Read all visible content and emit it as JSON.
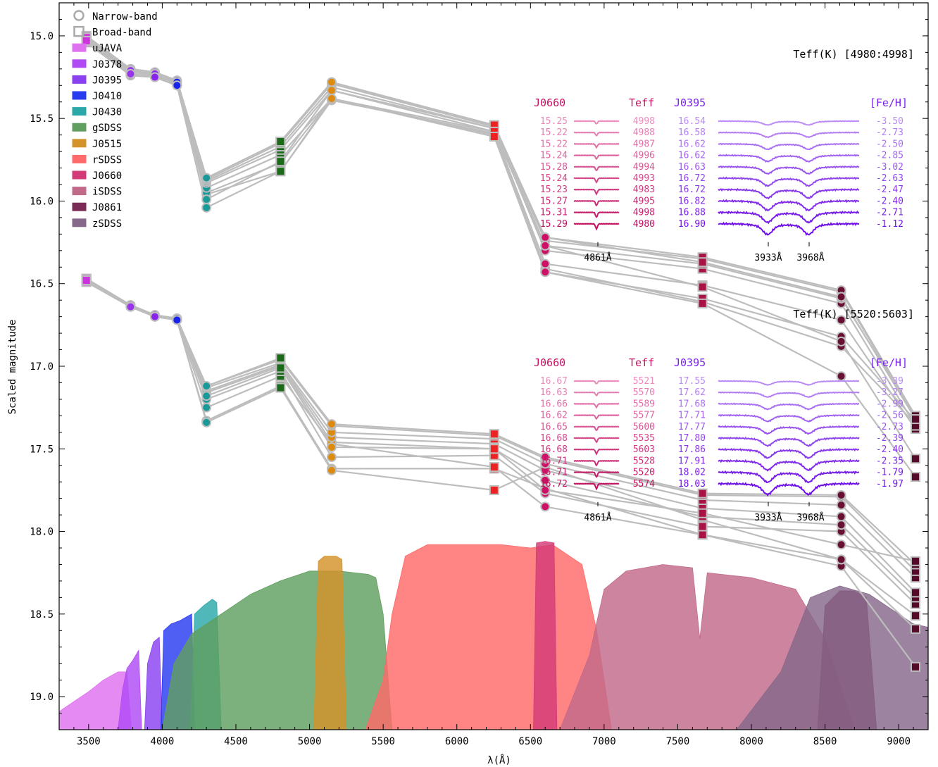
{
  "chart_data": {
    "type": "scatter",
    "xlabel": "λ(Å)",
    "ylabel": "Scaled magnitude",
    "xlim": [
      3300,
      9200
    ],
    "ylim": [
      19.2,
      14.8
    ],
    "y_inverted": true,
    "xticks": [
      3500,
      4000,
      4500,
      5000,
      5500,
      6000,
      6500,
      7000,
      7500,
      8000,
      8500,
      9000
    ],
    "yticks": [
      15.0,
      15.5,
      16.0,
      16.5,
      17.0,
      17.5,
      18.0,
      18.5,
      19.0
    ],
    "legend_position": "top-left",
    "legend": [
      {
        "label": "Narrow-band",
        "kind": "circle",
        "color": "#aaaaaa"
      },
      {
        "label": "Broad-band",
        "kind": "square",
        "color": "#aaaaaa"
      },
      {
        "label": "uJAVA",
        "kind": "patch",
        "color": "#df70f0"
      },
      {
        "label": "J0378",
        "kind": "patch",
        "color": "#b04af5"
      },
      {
        "label": "J0395",
        "kind": "patch",
        "color": "#8a42f0"
      },
      {
        "label": "J0410",
        "kind": "patch",
        "color": "#2a3cf0"
      },
      {
        "label": "J0430",
        "kind": "patch",
        "color": "#2aa8a8"
      },
      {
        "label": "gSDSS",
        "kind": "patch",
        "color": "#5f9f5f"
      },
      {
        "label": "J0515",
        "kind": "patch",
        "color": "#d4922a"
      },
      {
        "label": "rSDSS",
        "kind": "patch",
        "color": "#ff6a6a"
      },
      {
        "label": "J0660",
        "kind": "patch",
        "color": "#d43a78"
      },
      {
        "label": "iSDSS",
        "kind": "patch",
        "color": "#c26a8a"
      },
      {
        "label": "J0861",
        "kind": "patch",
        "color": "#7a2a54"
      },
      {
        "label": "zSDSS",
        "kind": "patch",
        "color": "#86688a"
      }
    ],
    "filters": [
      {
        "name": "uJAVA",
        "center": 3485,
        "kind": "broad",
        "color": "#cc33dd"
      },
      {
        "name": "J0378",
        "center": 3785,
        "kind": "narrow",
        "color": "#9a33ee"
      },
      {
        "name": "J0395",
        "center": 3950,
        "kind": "narrow",
        "color": "#8a22ee"
      },
      {
        "name": "J0410",
        "center": 4100,
        "kind": "narrow",
        "color": "#1a22ee"
      },
      {
        "name": "J0430",
        "center": 4300,
        "kind": "narrow",
        "color": "#1a9999"
      },
      {
        "name": "gSDSS",
        "center": 4803,
        "kind": "broad",
        "color": "#1a6a1a"
      },
      {
        "name": "J0515",
        "center": 5150,
        "kind": "narrow",
        "color": "#dd8a11"
      },
      {
        "name": "rSDSS",
        "center": 6254,
        "kind": "broad",
        "color": "#ee2222"
      },
      {
        "name": "J0660",
        "center": 6600,
        "kind": "narrow",
        "color": "#cc1166"
      },
      {
        "name": "iSDSS",
        "center": 7668,
        "kind": "broad",
        "color": "#aa1144"
      },
      {
        "name": "J0861",
        "center": 8610,
        "kind": "narrow",
        "color": "#661133"
      },
      {
        "name": "zSDSS",
        "center": 9114,
        "kind": "broad",
        "color": "#550a2a"
      }
    ],
    "groups": [
      {
        "label": "Teff(K) [4980:4998]",
        "stars": [
          [
            15.04,
            15.24,
            15.25,
            15.3,
            15.96,
            15.82,
            15.39,
            15.59,
            16.41,
            16.61,
            16.88,
            17.35
          ],
          [
            15.03,
            15.24,
            15.25,
            15.3,
            15.95,
            15.77,
            15.38,
            15.6,
            16.43,
            16.59,
            16.82,
            17.33
          ],
          [
            15.02,
            15.23,
            15.25,
            15.3,
            15.92,
            15.72,
            15.38,
            15.58,
            16.38,
            16.51,
            16.72,
            17.38
          ],
          [
            15.02,
            15.22,
            15.24,
            15.29,
            15.89,
            15.69,
            15.33,
            15.56,
            16.3,
            16.41,
            16.62,
            17.36
          ],
          [
            15.01,
            15.21,
            15.23,
            15.28,
            15.88,
            15.67,
            15.31,
            15.56,
            16.27,
            16.38,
            16.59,
            17.3
          ],
          [
            15.01,
            15.21,
            15.23,
            15.28,
            15.87,
            15.65,
            15.29,
            15.55,
            16.24,
            16.35,
            16.55,
            17.31
          ],
          [
            15.0,
            15.2,
            15.22,
            15.27,
            15.86,
            15.64,
            15.29,
            15.54,
            16.22,
            16.34,
            16.54,
            17.3
          ],
          [
            15.0,
            15.2,
            15.22,
            15.27,
            15.86,
            15.64,
            15.28,
            15.54,
            16.22,
            16.37,
            16.58,
            17.32
          ],
          [
            15.01,
            15.21,
            15.23,
            15.28,
            15.99,
            15.76,
            15.33,
            15.58,
            16.27,
            16.52,
            16.85,
            17.56
          ],
          [
            15.03,
            15.23,
            15.25,
            15.3,
            16.04,
            15.82,
            15.38,
            15.61,
            16.43,
            16.62,
            17.06,
            17.67
          ]
        ],
        "spectra_panel": {
          "left_header": "J0660",
          "mid_header": "Teff",
          "right_header_band": "J0395",
          "right_header": "[Fe/H]",
          "left_feature": "4861Å",
          "right_features": [
            "3933Å",
            "3968Å"
          ],
          "rows": [
            {
              "j0660": "15.25",
              "teff": "4998",
              "j0395": "16.54",
              "feh": "-3.50"
            },
            {
              "j0660": "15.22",
              "teff": "4988",
              "j0395": "16.58",
              "feh": "-2.73"
            },
            {
              "j0660": "15.22",
              "teff": "4987",
              "j0395": "16.62",
              "feh": "-2.50"
            },
            {
              "j0660": "15.24",
              "teff": "4996",
              "j0395": "16.62",
              "feh": "-2.85"
            },
            {
              "j0660": "15.28",
              "teff": "4994",
              "j0395": "16.63",
              "feh": "-3.02"
            },
            {
              "j0660": "15.24",
              "teff": "4993",
              "j0395": "16.72",
              "feh": "-2.63"
            },
            {
              "j0660": "15.23",
              "teff": "4983",
              "j0395": "16.72",
              "feh": "-2.47"
            },
            {
              "j0660": "15.27",
              "teff": "4995",
              "j0395": "16.82",
              "feh": "-2.40"
            },
            {
              "j0660": "15.31",
              "teff": "4998",
              "j0395": "16.88",
              "feh": "-2.71"
            },
            {
              "j0660": "15.29",
              "teff": "4980",
              "j0395": "16.90",
              "feh": "-1.12"
            }
          ]
        }
      },
      {
        "label": "Teff(K) [5520:5603]",
        "stars": [
          [
            16.49,
            16.64,
            16.69,
            16.72,
            17.33,
            17.12,
            17.62,
            17.62,
            17.74,
            18.02,
            18.21,
            18.82
          ],
          [
            16.48,
            16.64,
            16.7,
            16.72,
            17.34,
            17.13,
            17.63,
            17.75,
            17.61,
            17.93,
            18.17,
            18.59
          ],
          [
            16.49,
            16.64,
            16.7,
            16.72,
            17.25,
            17.06,
            17.47,
            17.61,
            17.85,
            18.02,
            18.17,
            18.51
          ],
          [
            16.48,
            16.64,
            16.7,
            16.72,
            17.2,
            17.03,
            17.55,
            17.54,
            17.77,
            17.97,
            18.0,
            18.44
          ],
          [
            16.47,
            16.63,
            16.69,
            16.71,
            17.16,
            17.0,
            17.46,
            17.5,
            17.69,
            17.91,
            17.96,
            18.4
          ],
          [
            16.47,
            16.63,
            16.69,
            16.71,
            17.15,
            16.99,
            17.43,
            17.47,
            17.63,
            17.86,
            17.91,
            18.37
          ],
          [
            16.48,
            16.63,
            16.69,
            16.72,
            17.13,
            16.98,
            17.4,
            17.44,
            17.59,
            17.81,
            17.84,
            18.28
          ],
          [
            16.48,
            16.64,
            16.7,
            16.72,
            17.12,
            16.96,
            17.36,
            17.42,
            17.56,
            17.78,
            17.79,
            18.24
          ],
          [
            16.47,
            16.63,
            16.69,
            16.71,
            17.12,
            16.95,
            17.35,
            17.41,
            17.55,
            17.77,
            17.78,
            18.2
          ],
          [
            16.48,
            16.64,
            16.7,
            16.72,
            17.18,
            17.01,
            17.49,
            17.5,
            17.75,
            17.89,
            18.08,
            18.18
          ]
        ],
        "spectra_panel": {
          "left_header": "J0660",
          "mid_header": "Teff",
          "right_header_band": "J0395",
          "right_header": "[Fe/H]",
          "left_feature": "4861Å",
          "right_features": [
            "3933Å",
            "3968Å"
          ],
          "rows": [
            {
              "j0660": "16.67",
              "teff": "5521",
              "j0395": "17.55",
              "feh": "-3.39"
            },
            {
              "j0660": "16.63",
              "teff": "5570",
              "j0395": "17.62",
              "feh": "-3.27"
            },
            {
              "j0660": "16.66",
              "teff": "5589",
              "j0395": "17.68",
              "feh": "-2.99"
            },
            {
              "j0660": "16.62",
              "teff": "5577",
              "j0395": "17.71",
              "feh": "-2.56"
            },
            {
              "j0660": "16.65",
              "teff": "5600",
              "j0395": "17.77",
              "feh": "-2.73"
            },
            {
              "j0660": "16.68",
              "teff": "5535",
              "j0395": "17.80",
              "feh": "-2.39"
            },
            {
              "j0660": "16.68",
              "teff": "5603",
              "j0395": "17.86",
              "feh": "-2.40"
            },
            {
              "j0660": "16.71",
              "teff": "5528",
              "j0395": "17.91",
              "feh": "-2.35"
            },
            {
              "j0660": "16.71",
              "teff": "5520",
              "j0395": "18.02",
              "feh": "-1.79"
            },
            {
              "j0660": "16.72",
              "teff": "5574",
              "j0395": "18.03",
              "feh": "-1.97"
            }
          ]
        }
      }
    ],
    "star_order_note": "",
    "transmission_curves": [
      {
        "name": "uJAVA",
        "color": "#df70f0",
        "points": [
          [
            3300,
            19.09
          ],
          [
            3400,
            19.03
          ],
          [
            3500,
            18.97
          ],
          [
            3600,
            18.9
          ],
          [
            3700,
            18.85
          ],
          [
            3760,
            18.85
          ],
          [
            3790,
            19.2
          ]
        ]
      },
      {
        "name": "J0378",
        "color": "#b04af5",
        "points": [
          [
            3700,
            19.2
          ],
          [
            3730,
            18.96
          ],
          [
            3760,
            18.83
          ],
          [
            3800,
            18.78
          ],
          [
            3840,
            18.72
          ],
          [
            3860,
            19.2
          ]
        ]
      },
      {
        "name": "J0395",
        "color": "#8a42f0",
        "points": [
          [
            3880,
            19.2
          ],
          [
            3900,
            18.8
          ],
          [
            3940,
            18.67
          ],
          [
            3980,
            18.64
          ],
          [
            4000,
            19.2
          ]
        ]
      },
      {
        "name": "J0410",
        "color": "#2a3cf0",
        "points": [
          [
            3990,
            19.2
          ],
          [
            4010,
            18.6
          ],
          [
            4060,
            18.56
          ],
          [
            4120,
            18.54
          ],
          [
            4200,
            18.5
          ],
          [
            4220,
            19.2
          ]
        ]
      },
      {
        "name": "J0430",
        "color": "#2aa8a8",
        "points": [
          [
            4190,
            19.2
          ],
          [
            4220,
            18.5
          ],
          [
            4280,
            18.45
          ],
          [
            4340,
            18.41
          ],
          [
            4370,
            18.43
          ],
          [
            4400,
            19.2
          ]
        ]
      },
      {
        "name": "gSDSS",
        "color": "#5f9f5f",
        "points": [
          [
            4000,
            19.2
          ],
          [
            4080,
            18.8
          ],
          [
            4200,
            18.62
          ],
          [
            4400,
            18.5
          ],
          [
            4600,
            18.38
          ],
          [
            4800,
            18.3
          ],
          [
            5000,
            18.24
          ],
          [
            5200,
            18.24
          ],
          [
            5400,
            18.26
          ],
          [
            5450,
            18.28
          ],
          [
            5500,
            18.5
          ],
          [
            5560,
            19.2
          ]
        ]
      },
      {
        "name": "J0515",
        "color": "#d4922a",
        "points": [
          [
            5030,
            19.2
          ],
          [
            5060,
            18.18
          ],
          [
            5100,
            18.15
          ],
          [
            5180,
            18.15
          ],
          [
            5220,
            18.17
          ],
          [
            5250,
            19.2
          ]
        ]
      },
      {
        "name": "rSDSS",
        "color": "#ff6a6a",
        "points": [
          [
            5380,
            19.2
          ],
          [
            5500,
            18.9
          ],
          [
            5560,
            18.5
          ],
          [
            5650,
            18.15
          ],
          [
            5800,
            18.08
          ],
          [
            6000,
            18.08
          ],
          [
            6300,
            18.08
          ],
          [
            6500,
            18.1
          ],
          [
            6650,
            18.08
          ],
          [
            6850,
            18.2
          ],
          [
            6950,
            18.6
          ],
          [
            7050,
            19.2
          ]
        ]
      },
      {
        "name": "J0660",
        "color": "#d43a78",
        "points": [
          [
            6520,
            19.2
          ],
          [
            6540,
            18.07
          ],
          [
            6600,
            18.06
          ],
          [
            6660,
            18.07
          ],
          [
            6680,
            19.2
          ]
        ]
      },
      {
        "name": "iSDSS",
        "color": "#c26a8a",
        "points": [
          [
            6700,
            19.2
          ],
          [
            6900,
            18.75
          ],
          [
            7000,
            18.35
          ],
          [
            7150,
            18.24
          ],
          [
            7400,
            18.2
          ],
          [
            7600,
            18.22
          ],
          [
            7650,
            18.65
          ],
          [
            7700,
            18.25
          ],
          [
            8000,
            18.28
          ],
          [
            8300,
            18.35
          ],
          [
            8500,
            18.65
          ],
          [
            8700,
            19.2
          ]
        ]
      },
      {
        "name": "J0861",
        "color": "#7a2a54",
        "points": [
          [
            8450,
            19.2
          ],
          [
            8500,
            18.45
          ],
          [
            8600,
            18.36
          ],
          [
            8700,
            18.36
          ],
          [
            8780,
            18.4
          ],
          [
            8850,
            19.2
          ]
        ]
      },
      {
        "name": "zSDSS",
        "color": "#86688a",
        "points": [
          [
            7900,
            19.2
          ],
          [
            8200,
            18.85
          ],
          [
            8400,
            18.4
          ],
          [
            8600,
            18.33
          ],
          [
            8800,
            18.38
          ],
          [
            9000,
            18.5
          ],
          [
            9100,
            18.56
          ],
          [
            9200,
            18.58
          ]
        ]
      }
    ]
  }
}
